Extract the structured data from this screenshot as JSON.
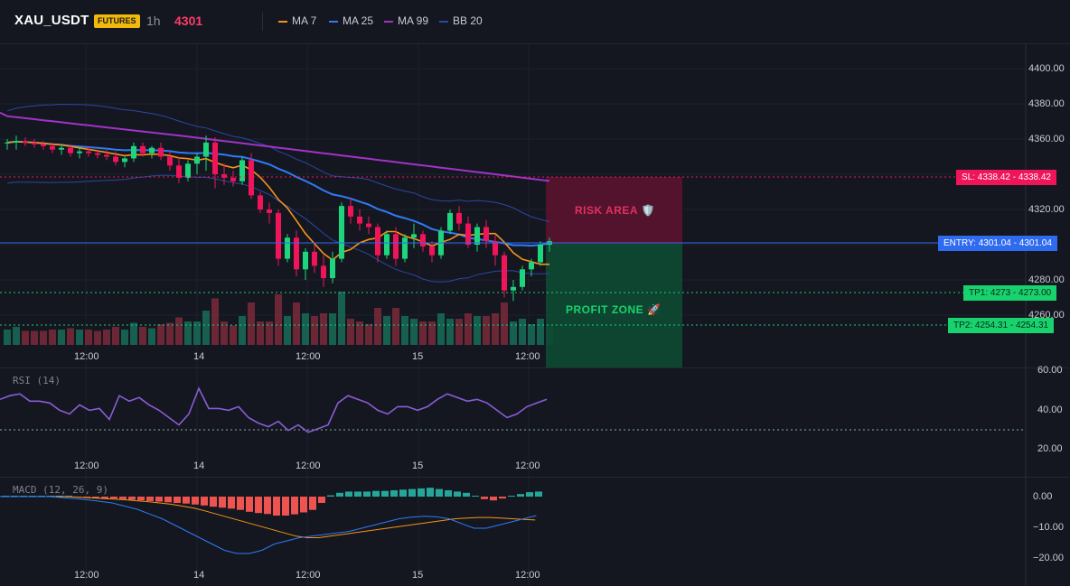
{
  "header": {
    "symbol": "XAU_USDT",
    "badge": "FUTURES",
    "timeframe": "1h",
    "last_price": "4301",
    "legends": [
      {
        "label": "MA 7",
        "color": "#f7931a"
      },
      {
        "label": "MA 25",
        "color": "#2f7bf6"
      },
      {
        "label": "MA 99",
        "color": "#a033c7"
      },
      {
        "label": "BB 20",
        "color": "#2b47a3"
      }
    ]
  },
  "price_axis": [
    "4400.00",
    "4380.00",
    "4360.00",
    "4320.00",
    "4280.00",
    "4260.00"
  ],
  "time_labels": [
    "12:00",
    "14",
    "12:00",
    "15",
    "12:00"
  ],
  "levels": {
    "sl": {
      "tag": "SL: 4338.42",
      "value": "4338.42",
      "color": "#f0145a"
    },
    "entry": {
      "tag": "ENTRY: 4301.04",
      "value": "4301.04",
      "color": "#2f6bf0"
    },
    "tp1": {
      "tag": "TP1: 4273",
      "value": "4273.00",
      "color": "#18d26e"
    },
    "tp2": {
      "tag": "TP2: 4254.31",
      "value": "4254.31",
      "color": "#18d26e"
    }
  },
  "zones": {
    "risk_label": "RISK AREA 🛡️",
    "profit_label": "PROFIT ZONE 🚀"
  },
  "rsi": {
    "title": "RSI (14)",
    "axis": [
      "60.00",
      "40.00",
      "20.00"
    ]
  },
  "macd": {
    "title": "MACD (12, 26, 9)",
    "axis": [
      "0.00",
      "−10.00",
      "−20.00"
    ]
  },
  "chart_data": {
    "type": "candlestick",
    "price_range": [
      4240,
      4410
    ],
    "candles": [
      [
        4358,
        4360,
        4354,
        4358
      ],
      [
        4358,
        4362,
        4354,
        4359
      ],
      [
        4359,
        4361,
        4356,
        4358
      ],
      [
        4358,
        4360,
        4355,
        4357
      ],
      [
        4357,
        4359,
        4354,
        4356
      ],
      [
        4356,
        4358,
        4352,
        4354
      ],
      [
        4354,
        4357,
        4351,
        4355
      ],
      [
        4355,
        4357,
        4350,
        4352
      ],
      [
        4352,
        4355,
        4349,
        4353
      ],
      [
        4353,
        4356,
        4350,
        4352
      ],
      [
        4352,
        4354,
        4349,
        4351
      ],
      [
        4351,
        4354,
        4348,
        4350
      ],
      [
        4350,
        4353,
        4345,
        4347
      ],
      [
        4347,
        4350,
        4344,
        4349
      ],
      [
        4349,
        4358,
        4347,
        4356
      ],
      [
        4356,
        4358,
        4350,
        4352
      ],
      [
        4352,
        4356,
        4349,
        4355
      ],
      [
        4355,
        4358,
        4348,
        4350
      ],
      [
        4350,
        4353,
        4342,
        4345
      ],
      [
        4345,
        4350,
        4335,
        4338
      ],
      [
        4338,
        4348,
        4336,
        4346
      ],
      [
        4346,
        4352,
        4340,
        4350
      ],
      [
        4350,
        4362,
        4342,
        4358
      ],
      [
        4358,
        4361,
        4332,
        4340
      ],
      [
        4340,
        4346,
        4334,
        4338
      ],
      [
        4338,
        4342,
        4333,
        4336
      ],
      [
        4336,
        4350,
        4334,
        4348
      ],
      [
        4348,
        4352,
        4326,
        4328
      ],
      [
        4328,
        4330,
        4318,
        4320
      ],
      [
        4320,
        4324,
        4312,
        4318
      ],
      [
        4318,
        4320,
        4288,
        4292
      ],
      [
        4292,
        4306,
        4290,
        4304
      ],
      [
        4304,
        4308,
        4282,
        4286
      ],
      [
        4286,
        4298,
        4280,
        4296
      ],
      [
        4296,
        4300,
        4284,
        4288
      ],
      [
        4288,
        4294,
        4276,
        4281
      ],
      [
        4281,
        4296,
        4278,
        4292
      ],
      [
        4292,
        4324,
        4290,
        4322
      ],
      [
        4322,
        4326,
        4312,
        4316
      ],
      [
        4316,
        4320,
        4308,
        4312
      ],
      [
        4312,
        4316,
        4306,
        4310
      ],
      [
        4310,
        4312,
        4290,
        4294
      ],
      [
        4294,
        4308,
        4292,
        4306
      ],
      [
        4306,
        4310,
        4288,
        4292
      ],
      [
        4292,
        4306,
        4290,
        4304
      ],
      [
        4304,
        4312,
        4298,
        4306
      ],
      [
        4306,
        4308,
        4296,
        4299
      ],
      [
        4299,
        4302,
        4290,
        4294
      ],
      [
        4294,
        4310,
        4292,
        4308
      ],
      [
        4308,
        4320,
        4306,
        4318
      ],
      [
        4318,
        4322,
        4308,
        4312
      ],
      [
        4312,
        4316,
        4298,
        4300
      ],
      [
        4300,
        4312,
        4296,
        4310
      ],
      [
        4310,
        4314,
        4298,
        4302
      ],
      [
        4302,
        4306,
        4288,
        4294
      ],
      [
        4294,
        4296,
        4270,
        4274
      ],
      [
        4274,
        4280,
        4268,
        4276
      ],
      [
        4276,
        4288,
        4274,
        4286
      ],
      [
        4286,
        4292,
        4282,
        4290
      ],
      [
        4290,
        4302,
        4288,
        4300
      ],
      [
        4300,
        4304,
        4296,
        4302
      ]
    ]
  }
}
